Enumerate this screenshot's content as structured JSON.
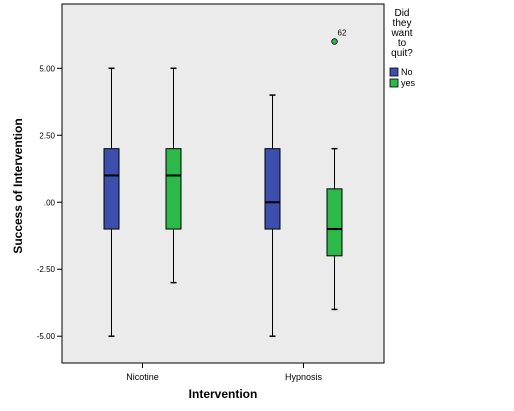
{
  "chart_data": {
    "type": "boxplot",
    "xlabel": "Intervention",
    "ylabel": "Success of Intervention",
    "ylim": [
      -6.0,
      7.4
    ],
    "yticks": [
      5.0,
      2.5,
      0.0,
      -2.5,
      -5.0
    ],
    "ytick_labels": [
      "5.00",
      "2.50",
      ".00",
      "-2.50",
      "-5.00"
    ],
    "grid": false,
    "legend": {
      "title": "Did they want to quit?",
      "title_lines": [
        "Did",
        "they",
        "want",
        "to",
        "quit?"
      ],
      "placement": "right"
    },
    "categories": [
      "Nicotine",
      "Hypnosis"
    ],
    "series": [
      {
        "name": "No",
        "color": "#3c4fad",
        "boxes": [
          {
            "min": -5.0,
            "q1": -1.0,
            "median": 1.0,
            "q3": 2.0,
            "max": 5.0,
            "outliers": []
          },
          {
            "min": -5.0,
            "q1": -1.0,
            "median": 0.0,
            "q3": 2.0,
            "max": 4.0,
            "outliers": []
          }
        ]
      },
      {
        "name": "yes",
        "color": "#2db84a",
        "boxes": [
          {
            "min": -3.0,
            "q1": -1.0,
            "median": 1.0,
            "q3": 2.0,
            "max": 5.0,
            "outliers": []
          },
          {
            "min": -4.0,
            "q1": -2.0,
            "median": -1.0,
            "q3": 0.5,
            "max": 2.0,
            "outliers": [
              {
                "value": 6.0,
                "label": "62"
              }
            ]
          }
        ]
      }
    ]
  }
}
